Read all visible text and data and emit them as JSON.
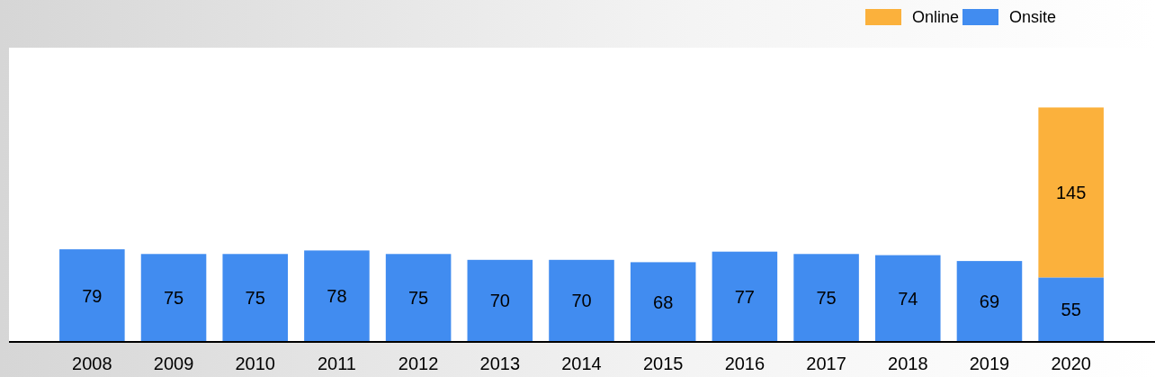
{
  "chart_data": {
    "type": "bar",
    "stacked": true,
    "data_labels": true,
    "legend": "top right",
    "categories": [
      "2008",
      "2009",
      "2010",
      "2011",
      "2012",
      "2013",
      "2014",
      "2015",
      "2016",
      "2017",
      "2018",
      "2019",
      "2020"
    ],
    "series": [
      {
        "name": "Onsite",
        "color": "#418cf0",
        "values": [
          79,
          75,
          75,
          78,
          75,
          70,
          70,
          68,
          77,
          75,
          74,
          69,
          55
        ]
      },
      {
        "name": "Online",
        "color": "#fbb13c",
        "values": [
          null,
          null,
          null,
          null,
          null,
          null,
          null,
          null,
          null,
          null,
          null,
          null,
          145
        ]
      }
    ]
  }
}
